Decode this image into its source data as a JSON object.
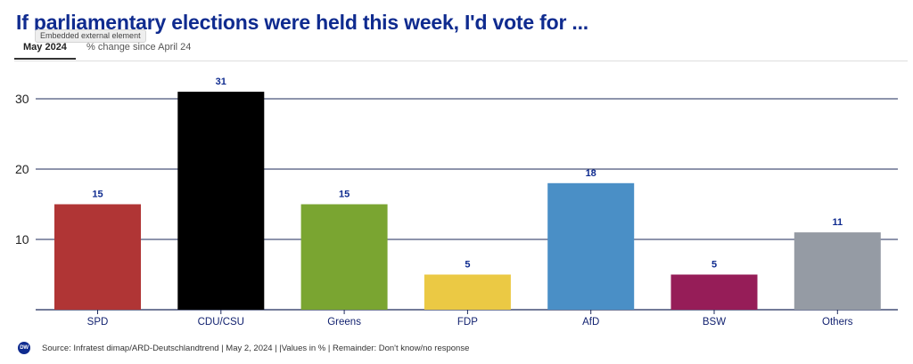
{
  "title": "If parliamentary elections were held this week, I'd vote for ...",
  "tooltip": "Embedded external element",
  "tabs": [
    {
      "label": "May 2024",
      "active": true
    },
    {
      "label": "% change since April 24",
      "active": false
    }
  ],
  "footer": {
    "logo_text": "DW",
    "source": "Source: Infratest dimap/ARD-Deutschlandtrend | May 2, 2024 | |Values in % | Remainder: Don't know/no response"
  },
  "colors": {
    "title": "#0f2b8f",
    "value_label": "#0f2b8f",
    "gridline": "#1e2a5a"
  },
  "chart_data": {
    "type": "bar",
    "title": "If parliamentary elections were held this week, I'd vote for ...",
    "xlabel": "",
    "ylabel": "",
    "categories": [
      "SPD",
      "CDU/CSU",
      "Greens",
      "FDP",
      "AfD",
      "BSW",
      "Others"
    ],
    "values": [
      15,
      31,
      15,
      5,
      18,
      5,
      11
    ],
    "value_labels": [
      "15",
      "31",
      "15",
      "5",
      "18",
      "5",
      "11"
    ],
    "bar_colors": [
      "#b03535",
      "#000000",
      "#7aa531",
      "#ebc944",
      "#4a8fc6",
      "#961d58",
      "#959ba4"
    ],
    "yticks": [
      10,
      20,
      30
    ],
    "ylim": [
      0,
      33
    ],
    "grid": true,
    "unit": "%"
  }
}
